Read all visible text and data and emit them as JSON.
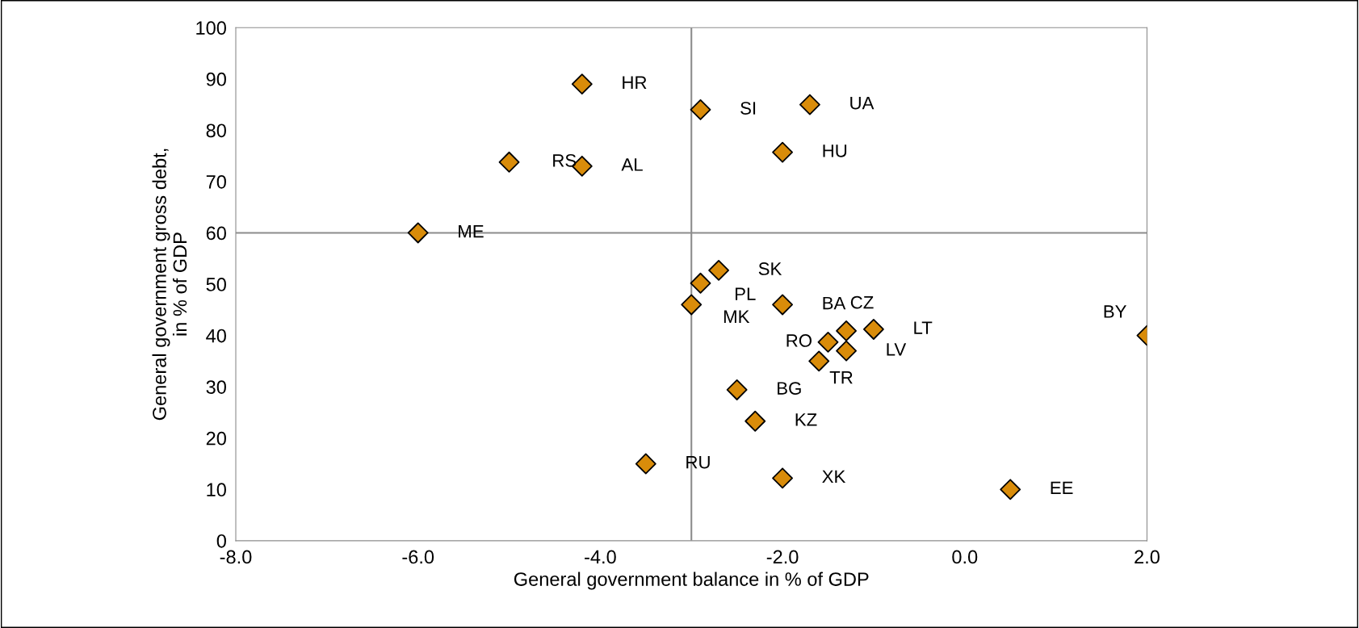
{
  "chart_data": {
    "type": "scatter",
    "xlabel": "General government balance in % of GDP",
    "ylabel": "General government gross debt,\nin % of GDP",
    "x": [
      -4.2,
      -2.9,
      -1.7,
      -2.0,
      -5.0,
      -4.2,
      -6.0,
      -2.7,
      -2.9,
      -3.0,
      -2.0,
      -1.3,
      -1.0,
      -1.5,
      -1.3,
      -1.6,
      2.0,
      -2.5,
      -2.3,
      -3.5,
      -2.0,
      0.5
    ],
    "values": [
      89,
      84,
      85,
      75.7,
      73.8,
      73,
      60,
      52.7,
      50.2,
      46,
      46,
      40.9,
      41.2,
      38.7,
      37,
      35,
      40,
      29.4,
      23.3,
      15,
      12.2,
      10
    ],
    "color": "#d98c0a",
    "marker": "diamond",
    "grid": false,
    "xlim": [
      -8,
      2
    ],
    "xticks": [
      {
        "value": -8,
        "label": "-8.0"
      },
      {
        "value": -6,
        "label": "-6.0"
      },
      {
        "value": -4,
        "label": "-4.0"
      },
      {
        "value": -2,
        "label": "-2.0"
      },
      {
        "value": 0,
        "label": "0.0"
      },
      {
        "value": 2,
        "label": "2.0"
      }
    ],
    "ylim": [
      0,
      100
    ],
    "yticks": [
      0,
      10,
      20,
      30,
      40,
      50,
      60,
      70,
      80,
      90,
      100
    ],
    "ref_lines": [
      {
        "axis": "x",
        "value": -3,
        "color": "#8c8c8c"
      },
      {
        "axis": "y",
        "value": 60,
        "color": "#8c8c8c"
      }
    ],
    "annotations": [
      {
        "text": "HR",
        "x": -4.2,
        "y": 89
      },
      {
        "text": "SI",
        "x": -2.9,
        "y": 84
      },
      {
        "text": "UA",
        "x": -1.7,
        "y": 85
      },
      {
        "text": "HU",
        "x": -2.0,
        "y": 75.7
      },
      {
        "text": "RS",
        "x": -5.0,
        "y": 73.8
      },
      {
        "text": "AL",
        "x": -4.2,
        "y": 73
      },
      {
        "text": "ME",
        "x": -6.0,
        "y": 60
      },
      {
        "text": "SK",
        "x": -2.7,
        "y": 52.7
      },
      {
        "text": "PL",
        "x": -2.9,
        "y": 50.2
      },
      {
        "text": "MK",
        "x": -3.0,
        "y": 46
      },
      {
        "text": "BA",
        "x": -2.0,
        "y": 46
      },
      {
        "text": "CZ",
        "x": -1.3,
        "y": 40.9
      },
      {
        "text": "LT",
        "x": -1.0,
        "y": 41.2
      },
      {
        "text": "RO",
        "x": -1.5,
        "y": 38.7
      },
      {
        "text": "LV",
        "x": -1.3,
        "y": 37
      },
      {
        "text": "TR",
        "x": -1.6,
        "y": 35
      },
      {
        "text": "BY",
        "x": 2.0,
        "y": 40
      },
      {
        "text": "BG",
        "x": -2.5,
        "y": 29.4
      },
      {
        "text": "KZ",
        "x": -2.3,
        "y": 23.3
      },
      {
        "text": "RU",
        "x": -3.5,
        "y": 15
      },
      {
        "text": "XK",
        "x": -2.0,
        "y": 12.2
      },
      {
        "text": "EE",
        "x": 0.5,
        "y": 10
      }
    ]
  }
}
